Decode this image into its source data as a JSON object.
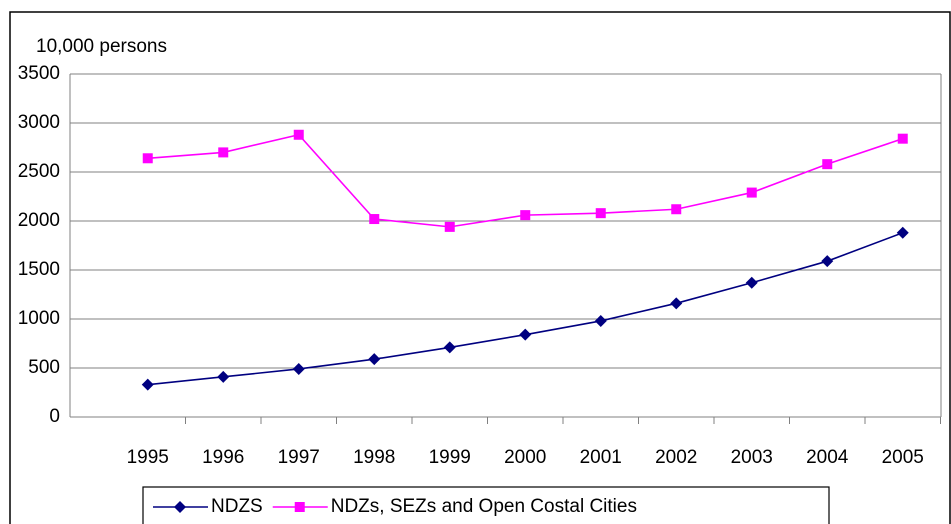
{
  "chart_data": {
    "type": "line",
    "y_label": "10,000 persons",
    "categories": [
      "1995",
      "1996",
      "1997",
      "1998",
      "1999",
      "2000",
      "2001",
      "2002",
      "2003",
      "2004",
      "2005"
    ],
    "series": [
      {
        "name": "NDZS",
        "color": "#000080",
        "marker": "diamond",
        "values": [
          330,
          410,
          490,
          590,
          710,
          840,
          980,
          1160,
          1370,
          1590,
          1880
        ]
      },
      {
        "name": "NDZs, SEZs and Open Costal Cities",
        "color": "#ff00ff",
        "marker": "square",
        "values": [
          2640,
          2700,
          2880,
          2020,
          1940,
          2060,
          2080,
          2120,
          2290,
          2580,
          2840
        ]
      }
    ],
    "ylim": [
      0,
      3500
    ],
    "yticks": [
      0,
      500,
      1000,
      1500,
      2000,
      2500,
      3000,
      3500
    ],
    "grid": true,
    "legend": "bottom"
  }
}
